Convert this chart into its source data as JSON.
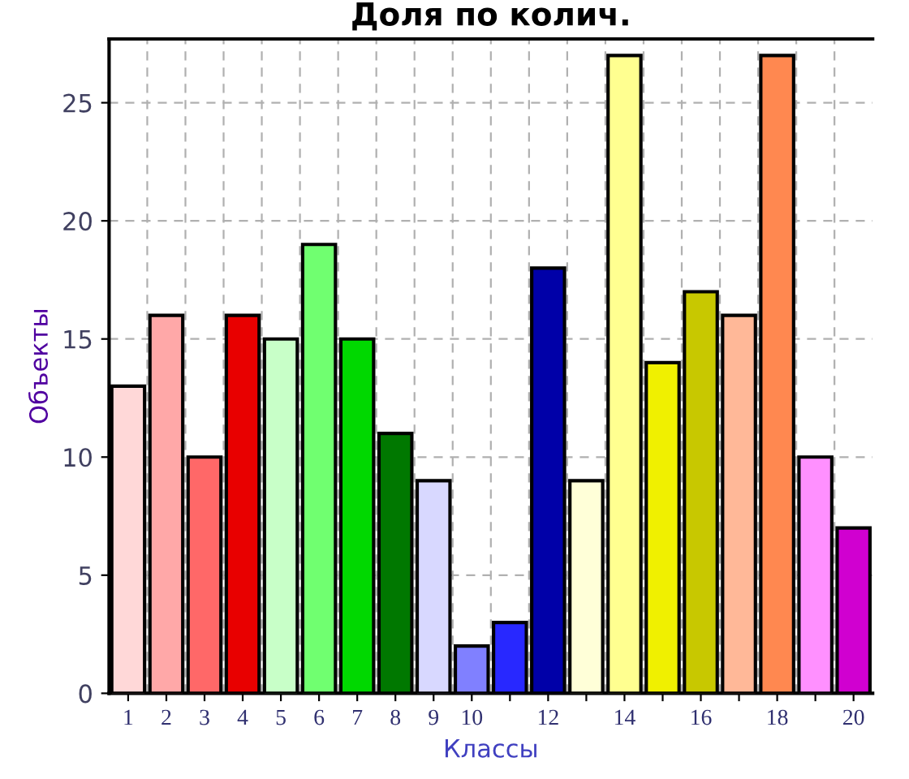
{
  "chart_data": {
    "type": "bar",
    "title": "Доля по колич.",
    "xlabel": "Классы",
    "ylabel": "Объекты",
    "categories": [
      "1",
      "2",
      "3",
      "4",
      "5",
      "6",
      "7",
      "8",
      "9",
      "10",
      null,
      "12",
      null,
      "14",
      null,
      "16",
      null,
      "18",
      null,
      "20"
    ],
    "values": [
      13,
      16,
      10,
      16,
      15,
      19,
      15,
      11,
      9,
      2,
      3,
      18,
      9,
      27,
      14,
      17,
      16,
      27,
      10,
      7
    ],
    "colors": [
      "#ffd8d8",
      "#ffa8a8",
      "#ff6868",
      "#e80000",
      "#c8ffc8",
      "#70ff70",
      "#00d800",
      "#007800",
      "#d8d8ff",
      "#8080ff",
      "#2828ff",
      "#0000a8",
      "#ffffd8",
      "#ffff90",
      "#f0f000",
      "#c8c800",
      "#ffb898",
      "#ff8850",
      "#ff90ff",
      "#d000d0"
    ],
    "ylim": [
      0,
      27.7
    ],
    "yticks": [
      0,
      5,
      10,
      15,
      20,
      25
    ],
    "grid": true,
    "legend": false
  }
}
